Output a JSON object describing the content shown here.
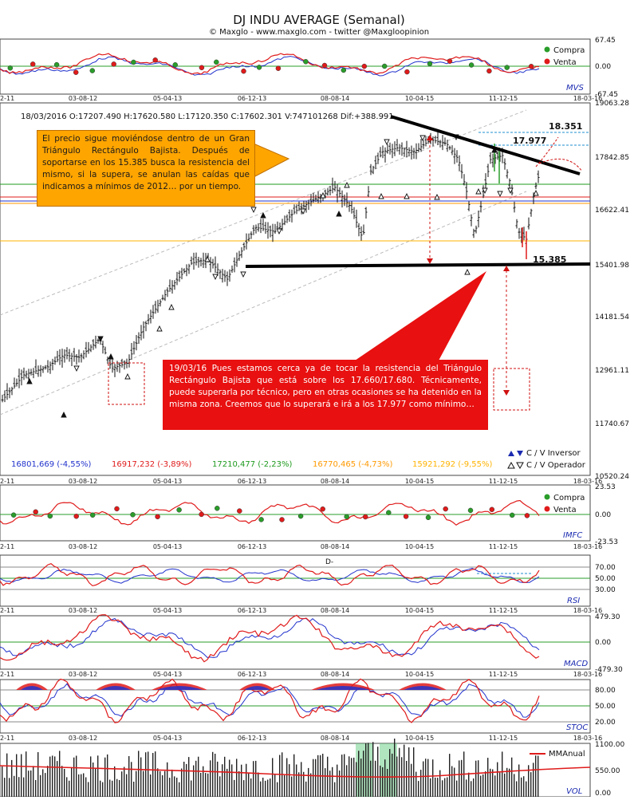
{
  "header": {
    "title": "DJ INDU AVERAGE (Semanal)",
    "subtitle": "© Maxglo - www.maxglo.com - twitter @Maxgloopinion"
  },
  "dates": [
    "2-11",
    "03-08-12",
    "05-04-13",
    "06-12-13",
    "08-08-14",
    "10-04-15",
    "11-12-15",
    "18-03-16"
  ],
  "mvs": {
    "label": "MVS",
    "top": "67.45",
    "mid": "0.00",
    "bottom": "-67.45",
    "legend_buy": "Compra",
    "legend_sell": "Venta"
  },
  "main": {
    "ohlc_line": "18/03/2016  O:17207.490  H:17620.580  L:17120.350  C:17602.301  V:747101268  Dif:+388.991",
    "yticks": [
      "19063.28",
      "17842.85",
      "16622.41",
      "15401.98",
      "14181.54",
      "12961.11",
      "11740.67",
      "10520.24"
    ],
    "levels": {
      "l18351": "18.351",
      "l17977": "17.977",
      "l15385": "15.385"
    },
    "legend_inv": "C / V Inversor",
    "legend_op": "C / V Operador",
    "ma_values": [
      "16801,669 (-4,55%)",
      "16917,232 (-3,89%)",
      "17210,477 (-2,23%)",
      "16770,465 (-4,73%)",
      "15921,292 (-9,55%)"
    ]
  },
  "callouts": {
    "c1": "El precio sigue moviéndose dentro de un Gran Triángulo Rectángulo Bajista. Después de soportarse en los 15.385 busca la resistencia del mismo, si la supera, se anulan las caídas que indicamos a mínimos de 2012… por un tiempo.",
    "c2": "19/03/16  Pues estamos cerca ya de tocar la resistencia del Triángulo Rectángulo Bajista que está sobre los 17.660/17.680. Técnicamente, puede superarla por técnico, pero en otras ocasiones se ha detenido en la misma zona. Creemos que lo superará e irá a los 17.977 como mínimo…"
  },
  "imfc": {
    "label": "IMFC",
    "top": "23.53",
    "mid": "0.00",
    "bottom": "-23.53",
    "legend_buy": "Compra",
    "legend_sell": "Venta"
  },
  "rsi": {
    "label": "RSI",
    "ticks": [
      "70.00",
      "50.00",
      "30.00"
    ],
    "note": "D-"
  },
  "macd": {
    "label": "MACD",
    "ticks": [
      "479.30",
      "0.00",
      "-479.30"
    ]
  },
  "stoc": {
    "label": "STOC",
    "ticks": [
      "80.00",
      "50.00",
      "20.00"
    ]
  },
  "vol": {
    "label": "VOL",
    "ticks": [
      "1100.00",
      "550.00",
      "0.00"
    ],
    "legend": "MMAnual"
  },
  "colors": {
    "bull": "#2a9d2a",
    "bear": "#e01b1b",
    "ma_blue": "#2233cc",
    "ma_red": "#e01b1b",
    "ma_green": "#1e9a1e",
    "ma_orange": "#ff9900",
    "ma_gold": "#ffb300",
    "callout1": "#ffa500",
    "callout2": "#e81010"
  },
  "chart_data": [
    {
      "type": "line",
      "name": "main",
      "title": "DJ INDU AVERAGE (Semanal)",
      "x": [
        "2-11",
        "03-08-12",
        "05-04-13",
        "06-12-13",
        "08-08-14",
        "10-04-15",
        "11-12-15",
        "18-03-16"
      ],
      "series": [
        {
          "values": [
            12100,
            12900,
            14400,
            15900,
            16800,
            17900,
            17500,
            17602
          ]
        }
      ],
      "ylim": [
        10520.24,
        19063.28
      ],
      "levels": [
        18351,
        17977,
        15385
      ],
      "ohlc_last": {
        "open": 17207.49,
        "high": 17620.58,
        "low": 17120.35,
        "close": 17602.301,
        "volume": 747101268,
        "diff": 388.991
      }
    }
  ]
}
